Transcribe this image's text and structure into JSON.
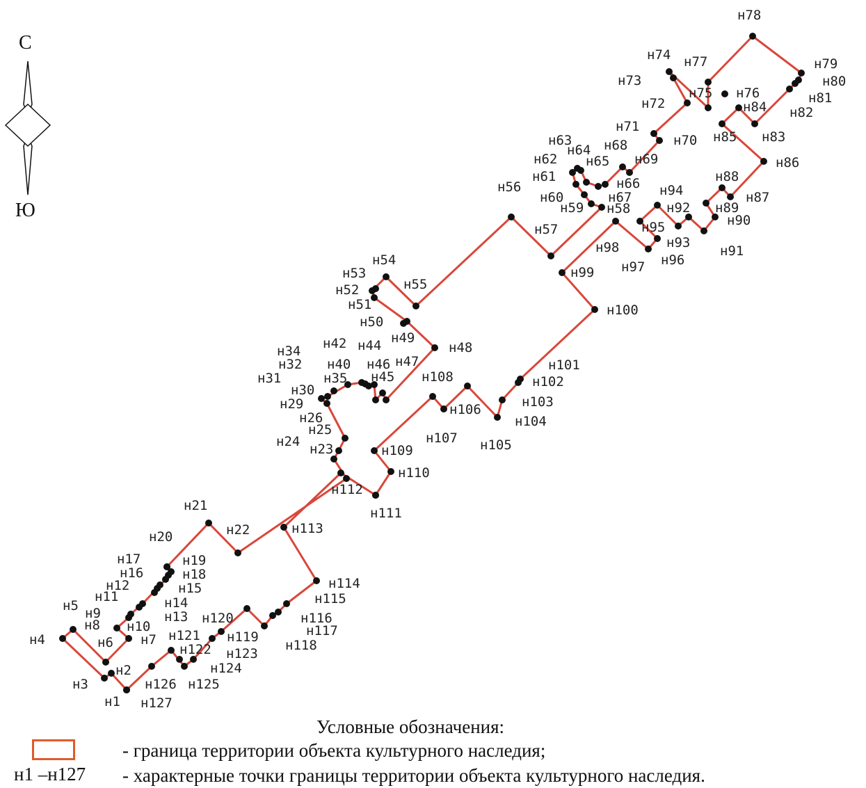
{
  "compass": {
    "north": "С",
    "south": "Ю"
  },
  "colors": {
    "boundary": "#d9473a",
    "point": "#111111"
  },
  "boundary_points": [
    "н1",
    "н2",
    "н3",
    "н4",
    "н5",
    "н6",
    "н7",
    "н8",
    "н9",
    "н10",
    "н11",
    "н12",
    "н13",
    "н14",
    "н15",
    "н16",
    "н17",
    "н18",
    "н19",
    "н20",
    "н21",
    "н22",
    "н23",
    "н24",
    "н25",
    "н26",
    "н29",
    "н30",
    "н31",
    "н32",
    "н34",
    "н35",
    "н40",
    "н42",
    "н44",
    "н45",
    "н46",
    "н47",
    "н48",
    "н49",
    "н50",
    "н51",
    "н52",
    "н53",
    "н54",
    "н55",
    "н56",
    "н57",
    "н58",
    "н59",
    "н60",
    "н61",
    "н62",
    "н63",
    "н64",
    "н65",
    "н66",
    "н67",
    "н68",
    "н69",
    "н70",
    "н71",
    "н72",
    "н73",
    "н74",
    "н75",
    "н76",
    "н77",
    "н78",
    "н79",
    "н80",
    "н81",
    "н82",
    "н83",
    "н84",
    "н85",
    "н86",
    "н87",
    "н88",
    "н89",
    "н90",
    "н91",
    "н92",
    "н93",
    "н94",
    "н95",
    "н96",
    "н97",
    "н98",
    "н99",
    "н100",
    "н101",
    "н102",
    "н103",
    "н104",
    "н105",
    "н106",
    "н107",
    "н108",
    "н109",
    "н110",
    "н111",
    "н112",
    "н113",
    "н114",
    "н115",
    "н116",
    "н117",
    "н118",
    "н119",
    "н120",
    "н121",
    "н122",
    "н123",
    "н124",
    "н125",
    "н126",
    "н127"
  ],
  "legend": {
    "title": "Условные обозначения:",
    "boundary_desc": "- граница территории объекта культурного наследия;",
    "points_range": "н1 –н127",
    "points_desc": "- характерные точки границы территории объекта культурного наследия."
  }
}
